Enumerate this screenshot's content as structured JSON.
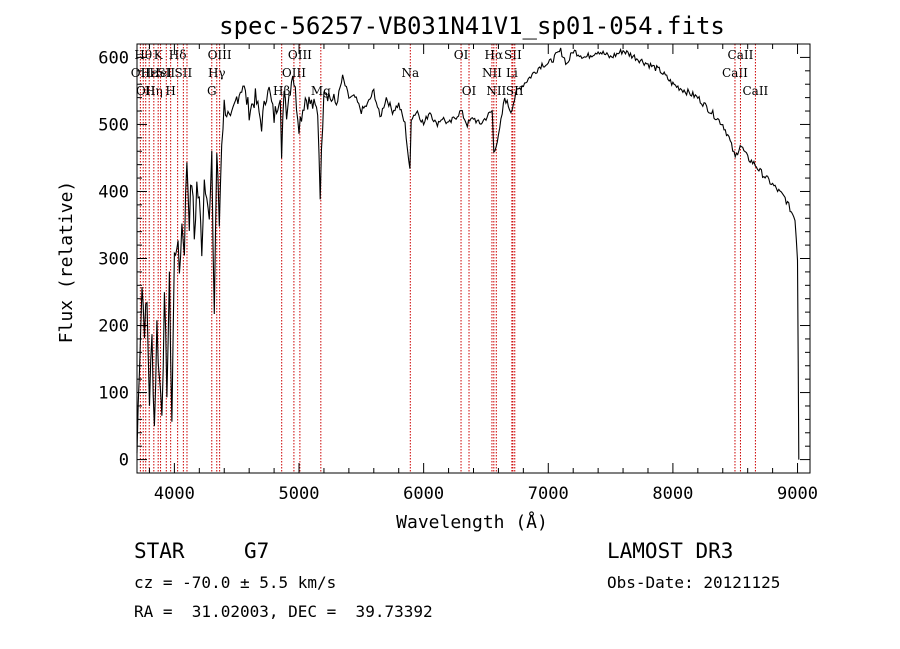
{
  "chart_data": {
    "type": "line",
    "title": "spec-56257-VB031N41V1_sp01-054.fits",
    "xlabel": "Wavelength (Å)",
    "ylabel": "Flux (relative)",
    "xlim": [
      3700,
      9100
    ],
    "ylim": [
      -20,
      620
    ],
    "xticks": [
      4000,
      5000,
      6000,
      7000,
      8000,
      9000
    ],
    "yticks": [
      0,
      100,
      200,
      300,
      400,
      500,
      600
    ],
    "series": [
      {
        "name": "flux",
        "x": [
          3700,
          3720,
          3740,
          3760,
          3780,
          3800,
          3820,
          3840,
          3860,
          3880,
          3900,
          3920,
          3940,
          3960,
          3980,
          4000,
          4020,
          4040,
          4060,
          4080,
          4100,
          4120,
          4140,
          4160,
          4180,
          4200,
          4220,
          4240,
          4260,
          4280,
          4300,
          4320,
          4340,
          4360,
          4380,
          4400,
          4450,
          4500,
          4550,
          4600,
          4650,
          4700,
          4750,
          4800,
          4850,
          4860,
          4880,
          4900,
          4950,
          5000,
          5050,
          5100,
          5150,
          5170,
          5200,
          5250,
          5300,
          5350,
          5400,
          5450,
          5500,
          5550,
          5600,
          5650,
          5700,
          5750,
          5800,
          5850,
          5890,
          5900,
          5950,
          6000,
          6050,
          6100,
          6150,
          6200,
          6250,
          6300,
          6350,
          6400,
          6450,
          6500,
          6550,
          6563,
          6600,
          6650,
          6700,
          6750,
          6800,
          6850,
          6900,
          6950,
          7000,
          7050,
          7100,
          7150,
          7200,
          7300,
          7400,
          7500,
          7600,
          7700,
          7800,
          7900,
          8000,
          8100,
          8200,
          8300,
          8400,
          8450,
          8500,
          8540,
          8600,
          8660,
          8700,
          8750,
          8800,
          8850,
          8900,
          8950,
          8980,
          9000,
          9010
        ],
        "values": [
          10,
          150,
          260,
          200,
          230,
          90,
          180,
          50,
          200,
          120,
          80,
          230,
          110,
          260,
          60,
          300,
          330,
          280,
          350,
          320,
          450,
          360,
          420,
          330,
          410,
          380,
          320,
          420,
          410,
          350,
          440,
          220,
          460,
          350,
          480,
          530,
          500,
          540,
          560,
          520,
          540,
          500,
          560,
          510,
          550,
          440,
          560,
          520,
          580,
          500,
          540,
          530,
          520,
          400,
          560,
          540,
          530,
          570,
          540,
          540,
          520,
          530,
          550,
          510,
          540,
          520,
          530,
          500,
          430,
          510,
          520,
          500,
          520,
          500,
          510,
          500,
          510,
          520,
          500,
          510,
          500,
          510,
          520,
          460,
          480,
          540,
          520,
          550,
          560,
          570,
          580,
          590,
          590,
          600,
          610,
          590,
          610,
          600,
          610,
          600,
          610,
          600,
          590,
          580,
          560,
          550,
          540,
          520,
          500,
          480,
          450,
          470,
          450,
          440,
          430,
          420,
          410,
          400,
          390,
          370,
          360,
          300,
          0
        ]
      }
    ],
    "lines": [
      {
        "wavelength": 3727,
        "row": 1,
        "text": "OII"
      },
      {
        "wavelength": 3750,
        "row": 0,
        "text": "Hθ"
      },
      {
        "wavelength": 3770,
        "row": 2,
        "text": "OII"
      },
      {
        "wavelength": 3798,
        "row": 1,
        "text": "Hε"
      },
      {
        "wavelength": 3835,
        "row": 2,
        "text": "Hη"
      },
      {
        "wavelength": 3870,
        "row": 0,
        "text": "K"
      },
      {
        "wavelength": 3889,
        "row": 1,
        "text": "HeI"
      },
      {
        "wavelength": 3935,
        "row": 1,
        "text": "SII"
      },
      {
        "wavelength": 3970,
        "row": 2,
        "text": "H"
      },
      {
        "wavelength": 4026,
        "row": 0,
        "text": "Hδ"
      },
      {
        "wavelength": 4072,
        "row": 1,
        "text": "SII"
      },
      {
        "wavelength": 4101,
        "row": 0,
        "text": ""
      },
      {
        "wavelength": 4300,
        "row": 2,
        "text": "G"
      },
      {
        "wavelength": 4340,
        "row": 1,
        "text": "Hγ"
      },
      {
        "wavelength": 4363,
        "row": 0,
        "text": "OIII"
      },
      {
        "wavelength": 4861,
        "row": 2,
        "text": "Hβ"
      },
      {
        "wavelength": 4959,
        "row": 1,
        "text": "OIII"
      },
      {
        "wavelength": 5007,
        "row": 0,
        "text": "OIII"
      },
      {
        "wavelength": 5175,
        "row": 2,
        "text": "Mg"
      },
      {
        "wavelength": 5893,
        "row": 1,
        "text": "Na"
      },
      {
        "wavelength": 6300,
        "row": 0,
        "text": "OI"
      },
      {
        "wavelength": 6364,
        "row": 2,
        "text": "OI"
      },
      {
        "wavelength": 6548,
        "row": 1,
        "text": "NII"
      },
      {
        "wavelength": 6563,
        "row": 0,
        "text": "Hα"
      },
      {
        "wavelength": 6583,
        "row": 2,
        "text": "NII"
      },
      {
        "wavelength": 6708,
        "row": 1,
        "text": "Li"
      },
      {
        "wavelength": 6716,
        "row": 0,
        "text": "SII"
      },
      {
        "wavelength": 6731,
        "row": 2,
        "text": "SII"
      },
      {
        "wavelength": 8498,
        "row": 1,
        "text": "CaII"
      },
      {
        "wavelength": 8542,
        "row": 0,
        "text": "CaII"
      },
      {
        "wavelength": 8662,
        "row": 2,
        "text": "CaII"
      }
    ]
  },
  "info": {
    "object_class": "STAR",
    "subclass": "G7",
    "survey": "LAMOST DR3",
    "redshift_line": "cz = -70.0 ± 5.5 km/s",
    "obs_date_line": "Obs-Date: 20121125",
    "coords_line": "RA =  31.02003, DEC =  39.73392"
  },
  "colors": {
    "spectrum": "#000000",
    "line_marker": "#cc0000",
    "axis": "#000000"
  }
}
